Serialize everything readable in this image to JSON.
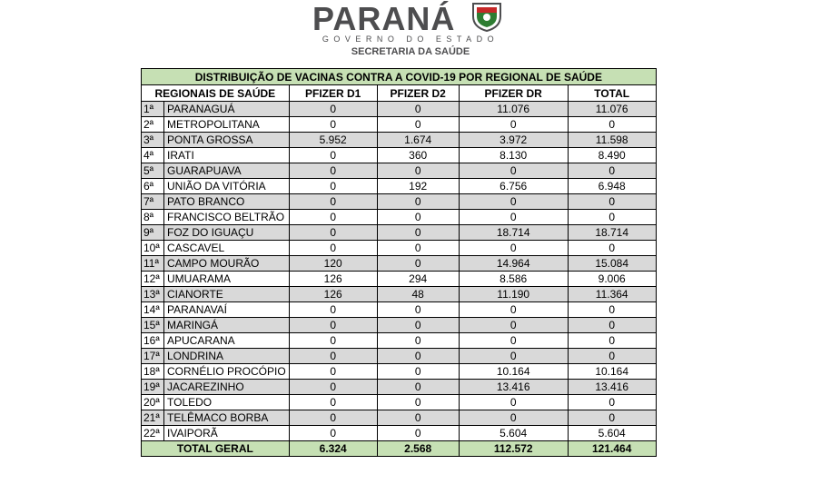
{
  "header": {
    "brand": "PARANÁ",
    "government": "GOVERNO DO ESTADO",
    "secretariat": "SECRETARIA DA SAÚDE"
  },
  "table": {
    "title": "DISTRIBUIÇÃO DE VACINAS CONTRA A COVID-19 POR REGIONAL DE SAÚDE",
    "columns": [
      "REGIONAIS DE SAÚDE",
      "PFIZER D1",
      "PFIZER D2",
      "PFIZER DR",
      "TOTAL"
    ],
    "rows": [
      [
        "1ª",
        "PARANAGUÁ",
        "0",
        "0",
        "11.076",
        "11.076"
      ],
      [
        "2ª",
        "METROPOLITANA",
        "0",
        "0",
        "0",
        "0"
      ],
      [
        "3ª",
        "PONTA GROSSA",
        "5.952",
        "1.674",
        "3.972",
        "11.598"
      ],
      [
        "4ª",
        "IRATI",
        "0",
        "360",
        "8.130",
        "8.490"
      ],
      [
        "5ª",
        "GUARAPUAVA",
        "0",
        "0",
        "0",
        "0"
      ],
      [
        "6ª",
        "UNIÃO DA VITÓRIA",
        "0",
        "192",
        "6.756",
        "6.948"
      ],
      [
        "7ª",
        "PATO BRANCO",
        "0",
        "0",
        "0",
        "0"
      ],
      [
        "8ª",
        "FRANCISCO BELTRÃO",
        "0",
        "0",
        "0",
        "0"
      ],
      [
        "9ª",
        "FOZ DO IGUAÇU",
        "0",
        "0",
        "18.714",
        "18.714"
      ],
      [
        "10ª",
        "CASCAVEL",
        "0",
        "0",
        "0",
        "0"
      ],
      [
        "11ª",
        "CAMPO MOURÃO",
        "120",
        "0",
        "14.964",
        "15.084"
      ],
      [
        "12ª",
        "UMUARAMA",
        "126",
        "294",
        "8.586",
        "9.006"
      ],
      [
        "13ª",
        "CIANORTE",
        "126",
        "48",
        "11.190",
        "11.364"
      ],
      [
        "14ª",
        "PARANAVAÍ",
        "0",
        "0",
        "0",
        "0"
      ],
      [
        "15ª",
        "MARINGÁ",
        "0",
        "0",
        "0",
        "0"
      ],
      [
        "16ª",
        "APUCARANA",
        "0",
        "0",
        "0",
        "0"
      ],
      [
        "17ª",
        "LONDRINA",
        "0",
        "0",
        "0",
        "0"
      ],
      [
        "18ª",
        "CORNÉLIO PROCÓPIO",
        "0",
        "0",
        "10.164",
        "10.164"
      ],
      [
        "19ª",
        "JACAREZINHO",
        "0",
        "0",
        "13.416",
        "13.416"
      ],
      [
        "20ª",
        "TOLEDO",
        "0",
        "0",
        "0",
        "0"
      ],
      [
        "21ª",
        "TELÊMACO BORBA",
        "0",
        "0",
        "0",
        "0"
      ],
      [
        "22ª",
        "IVAIPORÃ",
        "0",
        "0",
        "5.604",
        "5.604"
      ]
    ],
    "total": {
      "label": "TOTAL GERAL",
      "values": [
        "6.324",
        "2.568",
        "112.572",
        "121.464"
      ]
    }
  }
}
